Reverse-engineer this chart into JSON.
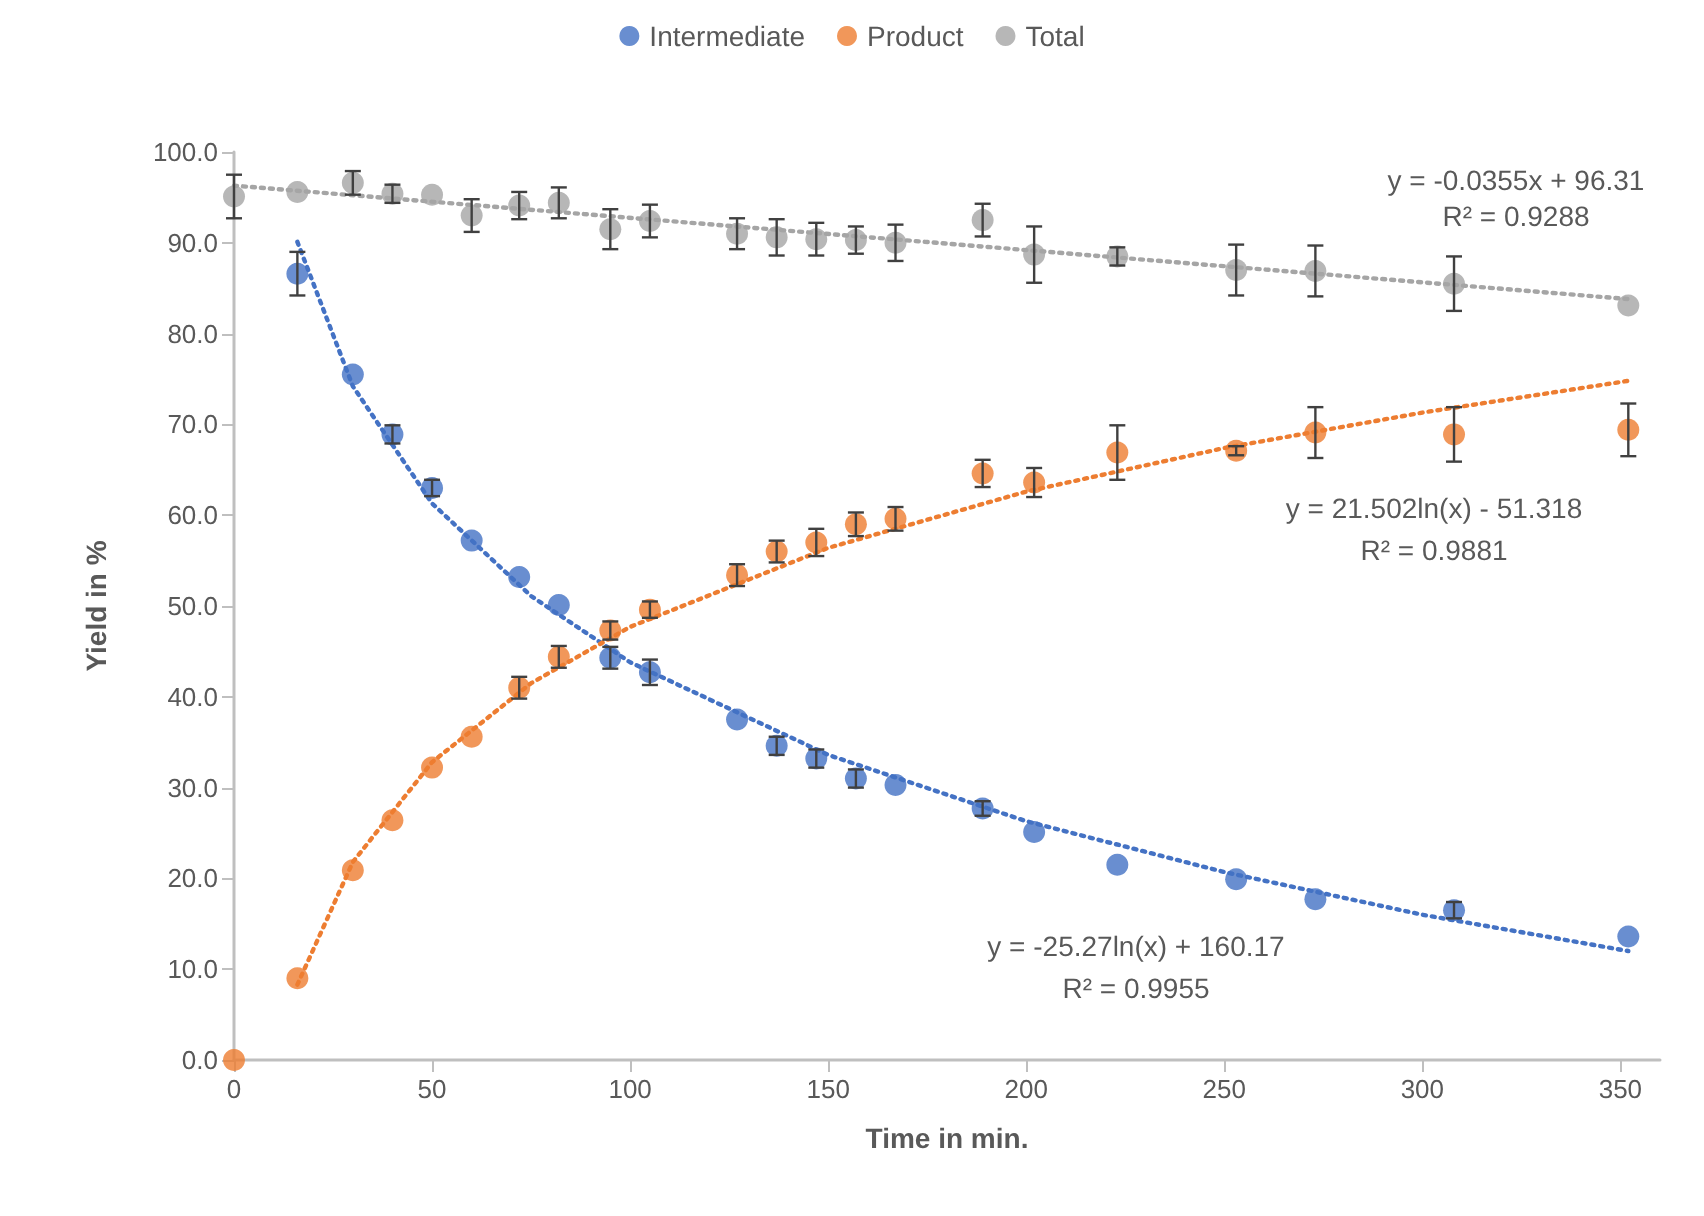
{
  "chart_data": {
    "type": "scatter",
    "xlabel": "Time in min.",
    "ylabel": "Yield in %",
    "x": [
      0,
      16,
      30,
      40,
      50,
      60,
      72,
      82,
      95,
      105,
      127,
      137,
      147,
      157,
      167,
      189,
      202,
      223,
      253,
      273,
      308,
      352
    ],
    "series": [
      {
        "name": "Intermediate",
        "color": "#4472c4",
        "values": [
          null,
          86.6,
          75.5,
          68.9,
          63.0,
          57.2,
          53.2,
          50.1,
          44.3,
          42.7,
          37.5,
          34.6,
          33.2,
          31.0,
          30.3,
          27.7,
          25.1,
          21.5,
          19.9,
          17.7,
          16.5,
          13.6
        ],
        "errors": [
          null,
          2.4,
          null,
          1.0,
          0.9,
          null,
          null,
          null,
          1.2,
          1.4,
          null,
          1.0,
          1.0,
          1.0,
          null,
          0.8,
          null,
          null,
          null,
          null,
          0.9,
          null
        ]
      },
      {
        "name": "Product",
        "color": "#ed7d31",
        "values": [
          0,
          9.0,
          20.9,
          26.4,
          32.2,
          35.6,
          41.0,
          44.4,
          47.3,
          49.6,
          53.4,
          56.0,
          57.0,
          59.0,
          59.6,
          64.6,
          63.6,
          66.9,
          67.1,
          69.1,
          68.9,
          69.4
        ],
        "errors": [
          null,
          null,
          null,
          null,
          null,
          null,
          1.2,
          1.2,
          1.0,
          0.9,
          1.2,
          1.2,
          1.5,
          1.3,
          1.3,
          1.5,
          1.6,
          3.0,
          0.5,
          2.8,
          3.0,
          2.9
        ]
      },
      {
        "name": "Total",
        "color": "#a5a5a5",
        "values": [
          95.1,
          95.6,
          96.6,
          95.4,
          95.3,
          93.0,
          94.1,
          94.4,
          91.5,
          92.4,
          91.0,
          90.6,
          90.4,
          90.3,
          90.0,
          92.5,
          88.7,
          88.5,
          87.0,
          86.9,
          85.5,
          83.1
        ],
        "errors": [
          2.4,
          null,
          1.3,
          1.0,
          null,
          1.8,
          1.5,
          1.7,
          2.2,
          1.8,
          1.7,
          2.0,
          1.8,
          1.5,
          2.0,
          1.8,
          3.1,
          1.0,
          2.8,
          2.8,
          3.0,
          null
        ]
      },
      {
        "type": "line",
        "color": "#4472c4",
        "line_style": "dotted",
        "marker": "none",
        "x": [
          16,
          30,
          50,
          75,
          100,
          150,
          200,
          250,
          300,
          352
        ],
        "values": [
          90.1,
          74.2,
          61.3,
          51.1,
          43.8,
          33.6,
          26.3,
          20.7,
          16.0,
          12.0
        ]
      },
      {
        "type": "line",
        "color": "#ed7d31",
        "line_style": "dotted",
        "marker": "none",
        "x": [
          16,
          30,
          50,
          75,
          100,
          150,
          200,
          250,
          300,
          352
        ],
        "values": [
          8.3,
          21.8,
          32.8,
          41.5,
          47.7,
          56.4,
          62.6,
          67.4,
          71.3,
          74.8
        ]
      },
      {
        "type": "line",
        "color": "#a5a5a5",
        "line_style": "dotted",
        "marker": "none",
        "x": [
          0,
          352
        ],
        "values": [
          96.3,
          83.8
        ]
      }
    ],
    "xlim": [
      0,
      360
    ],
    "xticks": [
      0,
      50,
      100,
      150,
      200,
      250,
      300,
      350
    ],
    "ylim": [
      0,
      100
    ],
    "yticks": [
      {
        "value": 0,
        "label": "0.0"
      },
      {
        "value": 10,
        "label": "10.0"
      },
      {
        "value": 20,
        "label": "20.0"
      },
      {
        "value": 30,
        "label": "30.0"
      },
      {
        "value": 40,
        "label": "40.0"
      },
      {
        "value": 50,
        "label": "50.0"
      },
      {
        "value": 60,
        "label": "60.0"
      },
      {
        "value": 70,
        "label": "70.0"
      },
      {
        "value": 80,
        "label": "80.0"
      },
      {
        "value": 90,
        "label": "90.0"
      },
      {
        "value": 100,
        "label": "100.0"
      }
    ],
    "marker": "circle",
    "grid": false,
    "legend": "top",
    "annotations": [
      "y = -0.0355x + 96.31",
      "R² = 0.9288",
      "y = 21.502ln(x) - 51.318",
      "R² = 0.9881",
      "y = -25.27ln(x) + 160.17",
      "R² = 0.9955"
    ]
  }
}
